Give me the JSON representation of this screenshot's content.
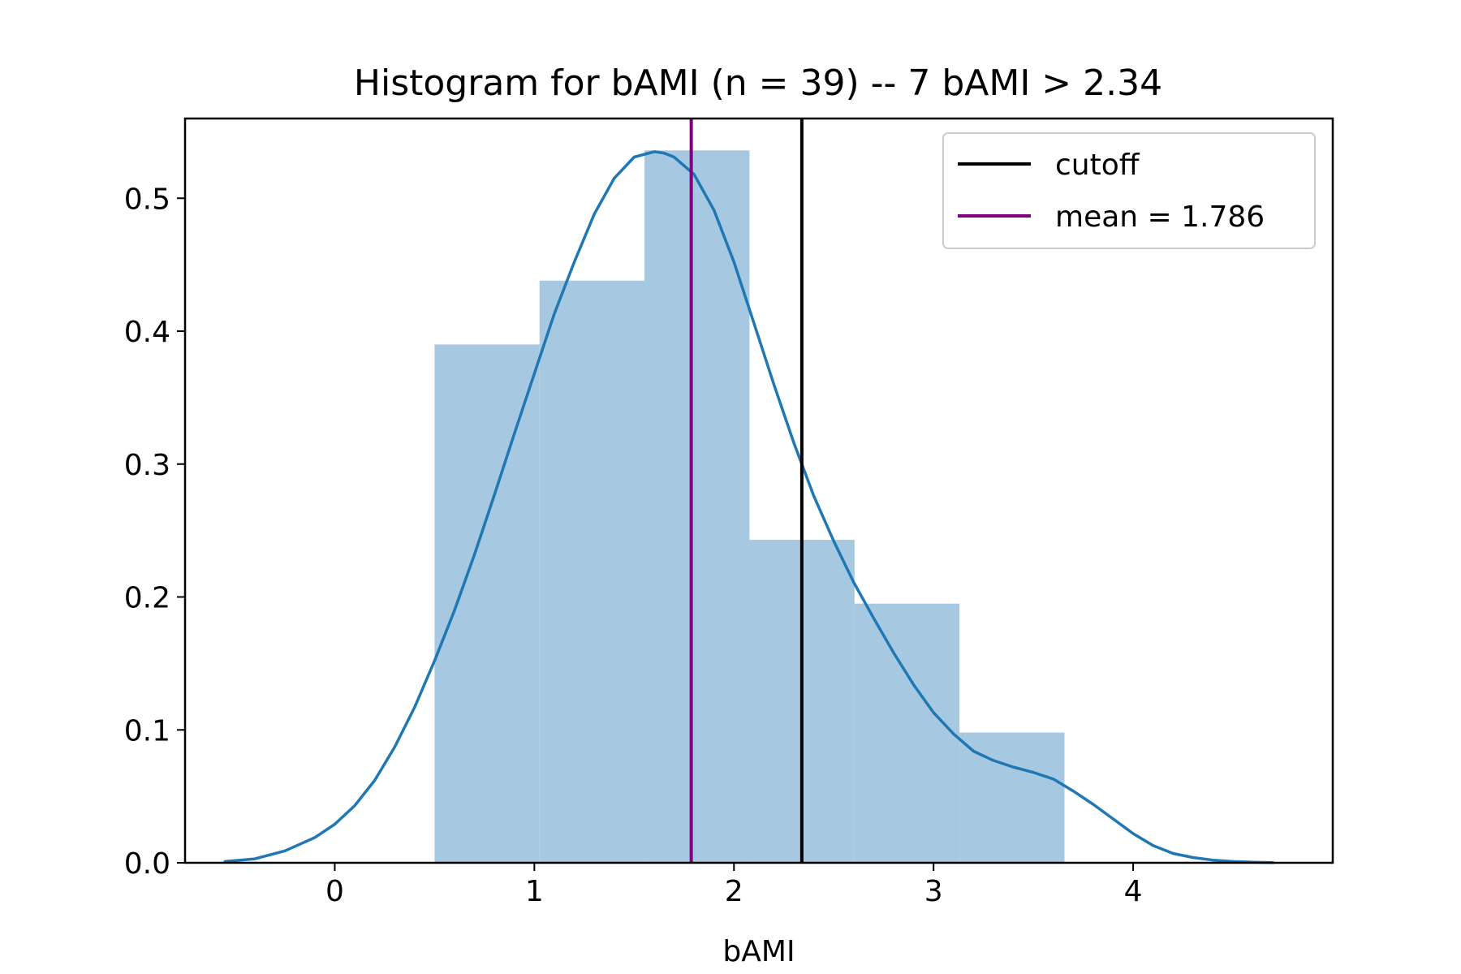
{
  "chart_data": {
    "type": "bar",
    "title": "Histogram for bAMI (n = 39) -- 7 bAMI > 2.34",
    "xlabel": "bAMI",
    "ylabel": "",
    "xlim": [
      -0.75,
      5.0
    ],
    "ylim": [
      0.0,
      0.56
    ],
    "xticks": [
      0,
      1,
      2,
      3,
      4
    ],
    "yticks": [
      0.0,
      0.1,
      0.2,
      0.3,
      0.4,
      0.5
    ],
    "xtick_labels": [
      "0",
      "1",
      "2",
      "3",
      "4"
    ],
    "ytick_labels": [
      "0.0",
      "0.1",
      "0.2",
      "0.3",
      "0.4",
      "0.5"
    ],
    "grid": false,
    "bins": [
      {
        "x0": 0.5,
        "x1": 1.026,
        "value": 0.39
      },
      {
        "x0": 1.026,
        "x1": 1.552,
        "value": 0.438
      },
      {
        "x0": 1.552,
        "x1": 2.078,
        "value": 0.536
      },
      {
        "x0": 2.078,
        "x1": 2.604,
        "value": 0.243
      },
      {
        "x0": 2.604,
        "x1": 3.13,
        "value": 0.195
      },
      {
        "x0": 3.13,
        "x1": 3.656,
        "value": 0.098
      }
    ],
    "kde": {
      "name": "density",
      "x": [
        -0.55,
        -0.4,
        -0.25,
        -0.1,
        0.0,
        0.1,
        0.2,
        0.3,
        0.4,
        0.5,
        0.6,
        0.7,
        0.8,
        0.9,
        1.0,
        1.1,
        1.2,
        1.3,
        1.4,
        1.5,
        1.6,
        1.65,
        1.7,
        1.8,
        1.9,
        2.0,
        2.1,
        2.2,
        2.3,
        2.4,
        2.5,
        2.6,
        2.7,
        2.8,
        2.9,
        3.0,
        3.1,
        3.2,
        3.3,
        3.4,
        3.5,
        3.6,
        3.7,
        3.8,
        3.9,
        4.0,
        4.1,
        4.2,
        4.3,
        4.4,
        4.5,
        4.6,
        4.7
      ],
      "y": [
        0.001,
        0.003,
        0.009,
        0.019,
        0.029,
        0.043,
        0.062,
        0.087,
        0.117,
        0.152,
        0.19,
        0.232,
        0.277,
        0.323,
        0.368,
        0.413,
        0.452,
        0.488,
        0.515,
        0.531,
        0.535,
        0.534,
        0.531,
        0.518,
        0.491,
        0.452,
        0.406,
        0.36,
        0.316,
        0.276,
        0.242,
        0.211,
        0.184,
        0.158,
        0.134,
        0.113,
        0.097,
        0.084,
        0.077,
        0.072,
        0.068,
        0.063,
        0.054,
        0.044,
        0.033,
        0.022,
        0.013,
        0.007,
        0.004,
        0.002,
        0.001,
        0.0005,
        0.0002
      ]
    },
    "vlines": [
      {
        "name": "cutoff",
        "x": 2.34,
        "color": "#000000"
      },
      {
        "name": "mean = 1.786",
        "x": 1.786,
        "color": "#800080"
      }
    ],
    "legend": {
      "position": "top-right",
      "entries": [
        {
          "label": "cutoff",
          "color": "#000000"
        },
        {
          "label": "mean = 1.786",
          "color": "#800080"
        }
      ]
    },
    "colors": {
      "bar_fill": "#a6c8e0",
      "kde_line": "#1f77b4",
      "axes": "#000000"
    }
  }
}
